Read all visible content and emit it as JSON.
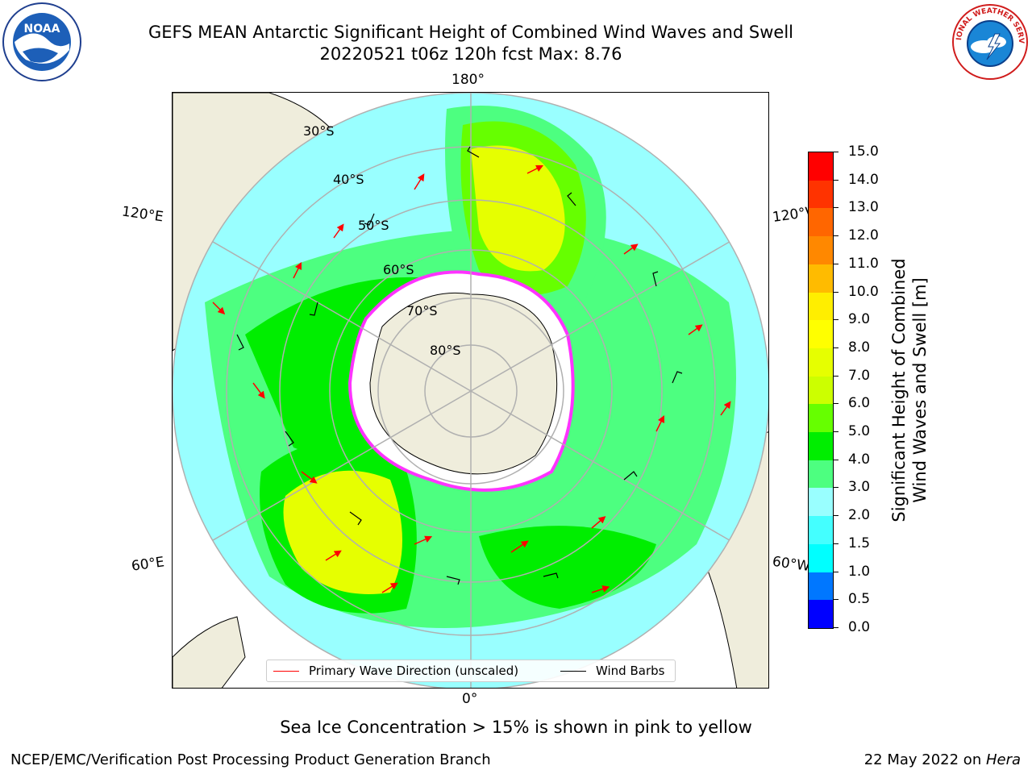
{
  "title": {
    "line1": "GEFS MEAN Antarctic Significant Height of Combined Wind Waves and Swell",
    "line2": "20220521 t06z 120h fcst   Max: 8.76"
  },
  "logos": {
    "left": "noaa-logo",
    "left_text": "NOAA",
    "right": "nws-logo",
    "right_text": "NATIONAL WEATHER SERVICE"
  },
  "map": {
    "projection": "south-polar-stereographic",
    "longitude_labels": [
      "180°",
      "120°E",
      "120°W",
      "60°E",
      "60°W",
      "0°"
    ],
    "latitude_labels": [
      "30°S",
      "40°S",
      "50°S",
      "60°S",
      "70°S",
      "80°S"
    ],
    "colors": {
      "land": "#efeddc",
      "ice": "#ffffff",
      "sea_ice_edge": "#ff33ff",
      "grid": "#b0b0b0",
      "arrow": "#ff0000",
      "barb": "#000000"
    }
  },
  "legend": {
    "primary_wave": "Primary Wave Direction (unscaled)",
    "primary_wave_color": "#ff0000",
    "wind_barbs": "Wind Barbs",
    "wind_barbs_color": "#000000"
  },
  "colorbar": {
    "label_line1": "Significant Height of Combined",
    "label_line2": "Wind Waves and Swell [m]",
    "ticks": [
      "0.0",
      "0.5",
      "1.0",
      "1.5",
      "2.0",
      "3.0",
      "4.0",
      "5.0",
      "6.0",
      "7.0",
      "8.0",
      "9.0",
      "10.0",
      "11.0",
      "12.0",
      "13.0",
      "14.0",
      "15.0"
    ],
    "colors": [
      "#0000ff",
      "#0077ff",
      "#00ffff",
      "#44ffff",
      "#99ffff",
      "#4dff80",
      "#00ee00",
      "#66ff00",
      "#ccff00",
      "#e6ff00",
      "#ffff00",
      "#ffee00",
      "#ffbb00",
      "#ff8800",
      "#ff6600",
      "#ff3300",
      "#ff0000"
    ]
  },
  "sea_ice_note": "Sea Ice Concentration > 15% is shown in pink to yellow",
  "footer": {
    "left": "NCEP/EMC/Verification Post Processing Product Generation Branch",
    "right_date": "22 May 2022 on ",
    "right_host": "Hera"
  }
}
